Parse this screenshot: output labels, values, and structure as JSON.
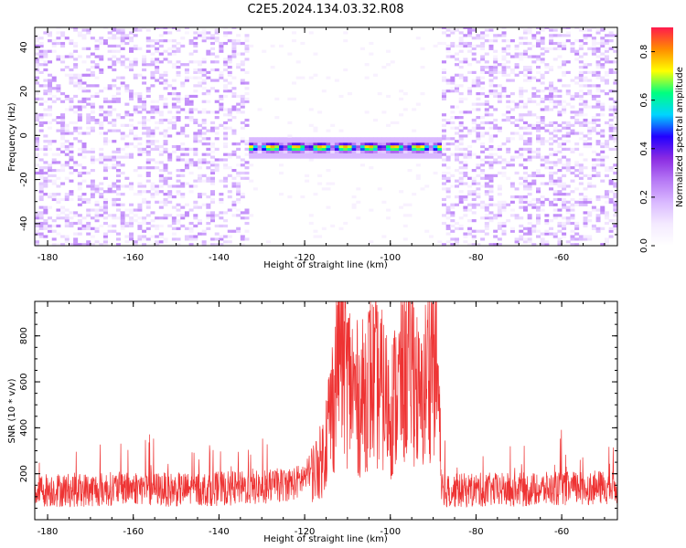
{
  "figure": {
    "title": "C2E5.2024.134.03.32.R08"
  },
  "colorbar": {
    "label": "Normalized spectral amplitude",
    "range": [
      0.0,
      0.9
    ],
    "ticks": [
      "0.0",
      "0.2",
      "0.4",
      "0.6",
      "0.8"
    ],
    "tick_values": [
      0.0,
      0.2,
      0.4,
      0.6,
      0.8
    ],
    "colormap": [
      "#ffffff",
      "#f4eaff",
      "#d9b8ff",
      "#b678f5",
      "#8a2be2",
      "#2200ff",
      "#00d5ff",
      "#00ff80",
      "#ffff00",
      "#ff8c00",
      "#ff1a4d"
    ]
  },
  "chart_data": [
    {
      "type": "heatmap",
      "title": "",
      "xlabel": "Height of straight line (km)",
      "ylabel": "Frequency (Hz)",
      "xlim": [
        -183,
        -47
      ],
      "ylim": [
        -50,
        49
      ],
      "x_ticks": [
        -180,
        -160,
        -140,
        -120,
        -100,
        -80,
        -60
      ],
      "x_tick_labels": [
        "-180",
        "-160",
        "-140",
        "-120",
        "-100",
        "-80",
        "-60"
      ],
      "y_ticks": [
        -40,
        -20,
        0,
        20,
        40
      ],
      "y_tick_labels": [
        "-40",
        "-20",
        "0",
        "20",
        "40"
      ],
      "signal_band": {
        "x_range": [
          -133,
          -88
        ],
        "frequency": -6,
        "peak_amplitude": 0.9
      },
      "noise": {
        "x_ranges": [
          [
            -183,
            -133
          ],
          [
            -88,
            -47
          ]
        ],
        "typical_amplitude": 0.1
      }
    },
    {
      "type": "line",
      "title": "",
      "xlabel": "Height of straight line (km)",
      "ylabel": "SNR (10 * v/v)",
      "xlim": [
        -183,
        -47
      ],
      "ylim": [
        0,
        950
      ],
      "x_ticks": [
        -180,
        -160,
        -140,
        -120,
        -100,
        -80,
        -60
      ],
      "x_tick_labels": [
        "-180",
        "-160",
        "-140",
        "-120",
        "-100",
        "-80",
        "-60"
      ],
      "y_ticks": [
        200,
        400,
        600,
        800
      ],
      "y_tick_labels": [
        "200",
        "400",
        "600",
        "800"
      ],
      "color": "#ee3333",
      "series": [
        {
          "x": [
            -183,
            -170,
            -160,
            -150,
            -140,
            -130,
            -122,
            -118,
            -116,
            -113,
            -112,
            -110,
            -107,
            -105,
            -102,
            -100,
            -97,
            -95,
            -93,
            -90,
            -89,
            -88,
            -87,
            -80,
            -70,
            -60,
            -50,
            -47
          ],
          "y": [
            130,
            130,
            140,
            130,
            135,
            140,
            160,
            210,
            260,
            560,
            900,
            620,
            500,
            620,
            560,
            480,
            620,
            720,
            470,
            780,
            620,
            150,
            125,
            130,
            130,
            135,
            140,
            140
          ]
        }
      ]
    }
  ]
}
